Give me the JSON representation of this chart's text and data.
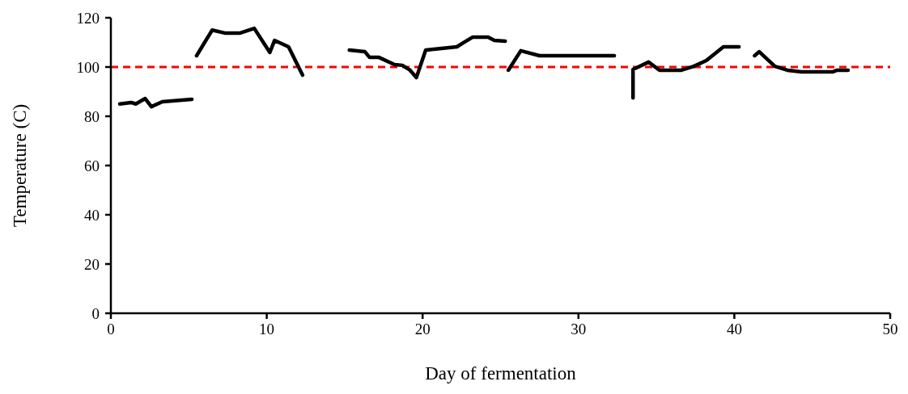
{
  "chart_data": {
    "type": "line",
    "xlabel": "Day of fermentation",
    "ylabel": "Temperature (C)",
    "xlim": [
      0,
      50
    ],
    "xticks": [
      0,
      10,
      20,
      30,
      40,
      50
    ],
    "ylim": [
      0,
      120
    ],
    "yticks": [
      0,
      20,
      40,
      60,
      80,
      100,
      120
    ],
    "grid": false,
    "marker": "none",
    "line_style": "solid",
    "series": [
      {
        "color": "#000000",
        "x": [
          0.57,
          1.3,
          1.6,
          2.2,
          2.6,
          3.3,
          5.2,
          5.35,
          5.5,
          6.5,
          7.3,
          8.3,
          9.2,
          10.2,
          10.5,
          11.4,
          12.3,
          13.8,
          15.3,
          16.3,
          16.6,
          17.2,
          18.2,
          18.7,
          19.2,
          19.6,
          20.2,
          22.2,
          22.6,
          23.2,
          24.2,
          24.6,
          25.3,
          25.4,
          25.5,
          26.3,
          27.5,
          32.3,
          32.9,
          33.5,
          33.5,
          34.5,
          35.2,
          36.6,
          37.4,
          38.2,
          39.3,
          40.3,
          40.8,
          41.3,
          41.6,
          42.6,
          43.4,
          44.3,
          46.3,
          46.6,
          47.3
        ],
        "values": [
          85,
          85.6,
          85,
          87.2,
          83.9,
          85.9,
          86.9,
          null,
          104.6,
          115,
          113.8,
          113.8,
          115.7,
          105.9,
          110.8,
          108.2,
          96.7,
          null,
          106.9,
          106.2,
          103.9,
          103.9,
          101,
          100.7,
          98.7,
          95.7,
          106.9,
          108.2,
          109.8,
          112.1,
          112.1,
          110.8,
          110.5,
          null,
          98.7,
          106.6,
          104.6,
          104.6,
          null,
          87.5,
          99,
          102,
          98.7,
          98.7,
          100.3,
          102.6,
          108.2,
          108.2,
          null,
          104.6,
          106.2,
          100.3,
          98.7,
          98,
          98,
          98.7,
          98.7
        ]
      }
    ],
    "ref_lines": [
      {
        "axis": "y",
        "value": 100,
        "color": "#ff0000",
        "line_style": "dashed"
      }
    ]
  }
}
